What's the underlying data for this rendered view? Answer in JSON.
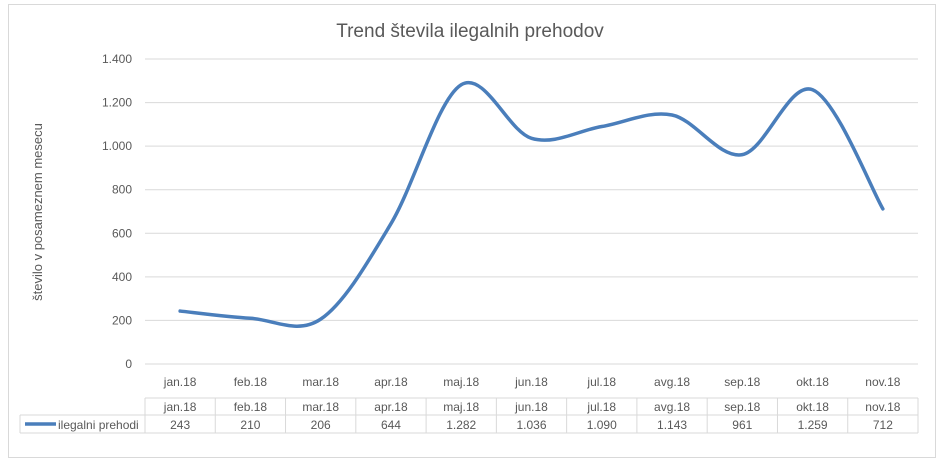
{
  "chart_data": {
    "type": "line",
    "title": "Trend števila ilegalnih prehodov",
    "xlabel": "",
    "ylabel": "število v posameznem mesecu",
    "categories": [
      "jan.18",
      "feb.18",
      "mar.18",
      "apr.18",
      "maj.18",
      "jun.18",
      "jul.18",
      "avg.18",
      "sep.18",
      "okt.18",
      "nov.18"
    ],
    "series": [
      {
        "name": "ilegalni prehodi",
        "values": [
          243,
          210,
          206,
          644,
          1282,
          1036,
          1090,
          1143,
          961,
          1259,
          712
        ],
        "labels": [
          "243",
          "210",
          "206",
          "644",
          "1.282",
          "1.036",
          "1.090",
          "1.143",
          "961",
          "1.259",
          "712"
        ]
      }
    ],
    "ylim": [
      0,
      1400
    ],
    "yticks": [
      0,
      200,
      400,
      600,
      800,
      1000,
      1200,
      1400
    ],
    "ytick_labels": [
      "0",
      "200",
      "400",
      "600",
      "800",
      "1.000",
      "1.200",
      "1.400"
    ],
    "grid": true,
    "smooth": true,
    "legend": "data-table",
    "colors": {
      "series": "#4a7ebb",
      "grid": "#d9d9d9",
      "text": "#595959"
    }
  }
}
